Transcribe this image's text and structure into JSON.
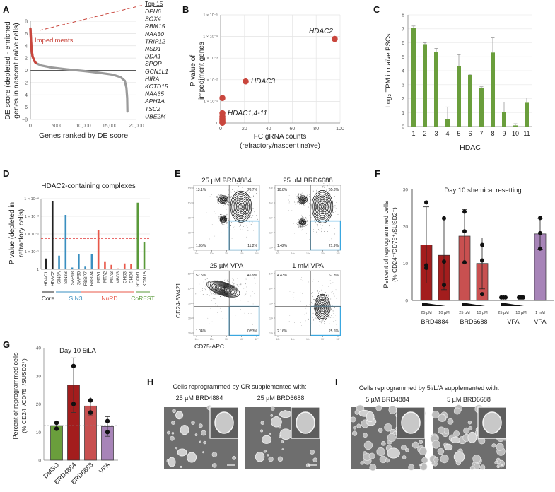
{
  "panel_labels": [
    "A",
    "B",
    "C",
    "D",
    "E",
    "F",
    "G",
    "H",
    "I"
  ],
  "chart_data": [
    {
      "type": "line",
      "title": "",
      "xlabel": "Genes ranked by DE score",
      "ylabel": [
        "DE score (depleted - enriched",
        "genes in nascent naïve cells)"
      ],
      "xlim": [
        0,
        20000
      ],
      "ylim": [
        -8,
        8
      ],
      "xticks": [
        0,
        5000,
        10000,
        15000,
        20000
      ],
      "xtick_labels": [
        "0",
        "5000",
        "10,000",
        "15,000",
        "20,000"
      ],
      "yticks": [
        8,
        6,
        4,
        2,
        0,
        -2,
        -4,
        -6,
        -8
      ],
      "ytick_labels": [
        "8",
        "6",
        "4",
        "2",
        "0",
        "−2",
        "−4",
        "−6",
        "−8"
      ],
      "grid": true,
      "annotation": "Impediments",
      "impediment_cutoff_rank": 1000,
      "curve": [
        [
          0,
          6.8
        ],
        [
          100,
          5.0
        ],
        [
          200,
          3.5
        ],
        [
          400,
          2.3
        ],
        [
          700,
          1.6
        ],
        [
          1000,
          1.2
        ],
        [
          2000,
          0.8
        ],
        [
          4000,
          0.45
        ],
        [
          7000,
          0.15
        ],
        [
          10000,
          -0.1
        ],
        [
          13000,
          -0.4
        ],
        [
          15500,
          -0.7
        ],
        [
          17000,
          -1.1
        ],
        [
          17800,
          -1.7
        ],
        [
          18100,
          -2.8
        ],
        [
          18250,
          -4.5
        ],
        [
          18300,
          -6.7
        ]
      ],
      "top15": {
        "header": "Top 15",
        "genes": [
          "DPH6",
          "SOX4",
          "RBM15",
          "NAA30",
          "TRIP12",
          "NSD1",
          "DDA1",
          "SPOP",
          "GCN1L1",
          "HIRA",
          "KCTD15",
          "NAA35",
          "APH1A",
          "TSC2",
          "UBE2M"
        ]
      },
      "colors": {
        "impediments": "#c9463d",
        "rest": "#9a9a9a"
      }
    },
    {
      "type": "scatter",
      "xlabel": [
        "FC gRNA counts",
        "(refractory/nascent naïve)"
      ],
      "ylabel": [
        "P value of",
        "impediment genes"
      ],
      "xlim": [
        0,
        100
      ],
      "ylim_log10": [
        0,
        -5
      ],
      "xticks": [
        0,
        20,
        40,
        60,
        80,
        100
      ],
      "xtick_labels": [
        "0",
        "20",
        "40",
        "60",
        "80",
        "100"
      ],
      "yticks_exp": [
        -5,
        -4,
        -3,
        -2,
        -1,
        0
      ],
      "ytick_labels": [
        "1 × 10⁻⁵",
        "1 × 10⁻⁴",
        "1 × 10⁻³",
        "1 × 10⁻²",
        "1 × 10⁻¹",
        "1"
      ],
      "grid": true,
      "points": [
        {
          "label": "HDAC2",
          "x": 95.5,
          "p": 0.00013
        },
        {
          "label": "HDAC3",
          "x": 21,
          "p": 0.012
        },
        {
          "label": "HDAC1,4-11",
          "x": 1.5,
          "p": 0.07
        },
        {
          "label": "",
          "x": 1.5,
          "p": 0.35
        },
        {
          "label": "",
          "x": 1.5,
          "p": 0.5
        },
        {
          "label": "",
          "x": 1.5,
          "p": 0.6
        },
        {
          "label": "",
          "x": 1.5,
          "p": 0.7
        },
        {
          "label": "",
          "x": 1.5,
          "p": 0.8
        },
        {
          "label": "",
          "x": 1.5,
          "p": 0.88
        },
        {
          "label": "",
          "x": 1.5,
          "p": 0.95
        },
        {
          "label": "",
          "x": 1.5,
          "p": 0.98
        }
      ],
      "color": "#c9463d"
    },
    {
      "type": "bar",
      "xlabel": "HDAC",
      "ylabel": "Log₂ TPM in naïve PSCs",
      "ylim": [
        0,
        8
      ],
      "yticks": [
        0,
        1,
        2,
        3,
        4,
        5,
        6,
        7,
        8
      ],
      "ytick_labels": [
        "0",
        "1",
        "2",
        "3",
        "4",
        "5",
        "6",
        "7",
        "8"
      ],
      "categories": [
        "1",
        "2",
        "3",
        "4",
        "5",
        "6",
        "7",
        "8",
        "9",
        "10",
        "11"
      ],
      "values": [
        7.05,
        5.9,
        5.35,
        0.55,
        4.35,
        3.7,
        2.75,
        5.3,
        1.05,
        0.08,
        1.7
      ],
      "errors": [
        0.15,
        0.1,
        0.25,
        0.85,
        0.8,
        0.05,
        0.1,
        1.05,
        0.7,
        0.12,
        0.35
      ],
      "grid": true,
      "color": "#6a9e3c"
    },
    {
      "type": "bar",
      "title": "HDAC2-containing complexes",
      "ylabel": [
        "P value (depleted in",
        "refractory cells)"
      ],
      "ylim_log10": [
        0,
        -4
      ],
      "yticks_exp": [
        -4,
        -3,
        -2,
        -1,
        0
      ],
      "ytick_labels": [
        "1 × 10⁻⁴",
        "1 × 10⁻³",
        "1 × 10⁻²",
        "1 × 10⁻¹",
        "1"
      ],
      "categories": [
        "HDAC1",
        "HDAC2",
        "SIN3A",
        "SIN3B",
        "SAP18",
        "SAP30",
        "RBBP7",
        "RBBP4",
        "MTA1",
        "MTA2",
        "MTA3",
        "MBD3",
        "CHD3",
        "CHD4",
        "RCOR1",
        "KDM1A"
      ],
      "neg_log10_p": [
        0.61,
        3.88,
        0.77,
        3.08,
        0.1,
        0.87,
        0.15,
        0.84,
        2.2,
        0.45,
        0.25,
        0.05,
        0.33,
        0.3,
        3.77,
        1.52
      ],
      "groups_of_bars": [
        "Core",
        "Core",
        "SIN3",
        "SIN3",
        "SIN3",
        "SIN3",
        "SIN3",
        "SIN3",
        "NuRD",
        "NuRD",
        "NuRD",
        "NuRD",
        "NuRD",
        "NuRD",
        "CoREST",
        "CoREST"
      ],
      "complexes": [
        {
          "name": "Core",
          "color": "#222222"
        },
        {
          "name": "SIN3",
          "color": "#3a8fc0"
        },
        {
          "name": "NuRD",
          "color": "#e8584a"
        },
        {
          "name": "CoREST",
          "color": "#5a9a3a"
        }
      ],
      "threshold_neg_log10_p": 1.75,
      "threshold_color": "#e23b3b",
      "grid": true
    },
    {
      "type": "scatter",
      "title": "flow cytometry",
      "xlabel": "CD75-APC",
      "ylabel": "CD24-BV421",
      "axis_tick_labels": [
        "10¹",
        "10²",
        "10³",
        "10⁴",
        "10⁵"
      ],
      "gate_color": "#3aa7e0",
      "plots": [
        {
          "title": "25 µM BRD4884",
          "UL": "13.1%",
          "UR": "73.7%",
          "LL": "1.95%",
          "LR": "11.2%"
        },
        {
          "title": "25 µM BRD6688",
          "UL": "10.8%",
          "UR": "65.8%",
          "LL": "1.42%",
          "LR": "21.9%"
        },
        {
          "title": "25 µM VPA",
          "UL": "52.5%",
          "UR": "45.9%",
          "LL": "1.04%",
          "LR": "0.53%"
        },
        {
          "title": "1 mM VPA",
          "UL": "4.43%",
          "UR": "67.8%",
          "LL": "2.16%",
          "LR": "25.6%"
        }
      ]
    },
    {
      "type": "bar",
      "title": "Day 10 shemical resetting",
      "ylabel": [
        "Percent of reprogrammed cells",
        "(% CD24⁻/CD75⁺/SUSD2⁺)"
      ],
      "ylim": [
        0,
        30
      ],
      "yticks": [
        0,
        10,
        20,
        30
      ],
      "ytick_labels": [
        "0",
        "10",
        "20",
        "30"
      ],
      "categories": [
        "25 µM",
        "10 µM",
        "25 µM",
        "10 µM",
        "25 µM",
        "10 µM",
        "1 mM"
      ],
      "groups": [
        "BRD4884",
        "BRD6688",
        "VPA",
        "VPA"
      ],
      "values": [
        15.0,
        12.2,
        17.4,
        10.0,
        0.7,
        0.7,
        18.0
      ],
      "errors": [
        10.3,
        9.3,
        7.2,
        6.9,
        0,
        0,
        4.2
      ],
      "points": [
        [
          26.5,
          9.5,
          8.8
        ],
        [
          22.2,
          10.5,
          4.2
        ],
        [
          24.0,
          18.7,
          10.3
        ],
        [
          15.0,
          10.8,
          1.7
        ],
        [
          0.8,
          0.8,
          0.8
        ],
        [
          0.8,
          0.8,
          0.8
        ],
        [
          22.3,
          18.2,
          14.0
        ]
      ],
      "colors": [
        "#a31d1d",
        "#a31d1d",
        "#c85050",
        "#c85050",
        "#888888",
        "#888888",
        "#a784b8"
      ]
    },
    {
      "type": "bar",
      "title": "Day 10 5iLA",
      "ylabel": [
        "Percent of reprogrammed cells",
        "(% CD24⁻/CD75⁺/SUSD2⁺)"
      ],
      "ylim": [
        0,
        40
      ],
      "yticks": [
        0,
        10,
        20,
        30,
        40
      ],
      "ytick_labels": [
        "0",
        "10",
        "20",
        "30",
        "40"
      ],
      "categories": [
        "DMSO",
        "BRD4884",
        "BRD6688",
        "VPA"
      ],
      "values": [
        12.3,
        26.7,
        19.3,
        12.0
      ],
      "errors": [
        1.3,
        9.7,
        3.2,
        3.5
      ],
      "points": [
        [
          13.3,
          11.2
        ],
        [
          33.5,
          20.0
        ],
        [
          21.3,
          17.0
        ],
        [
          13.9,
          10.0
        ]
      ],
      "reference_line": 12.3,
      "colors": [
        "#6a9e3c",
        "#a31d1d",
        "#c85050",
        "#a784b8"
      ]
    }
  ],
  "micrographs": {
    "H": {
      "title": "Cells reprogrammed by CR supplemented with:",
      "images": [
        "25 µM BRD4884",
        "25 µM BRD6688"
      ]
    },
    "I": {
      "title": "Cells reprogrammed by 5i/L/A supplemented with:",
      "images": [
        "5 µM BRD4884",
        "5 µM BRD6688"
      ]
    }
  }
}
